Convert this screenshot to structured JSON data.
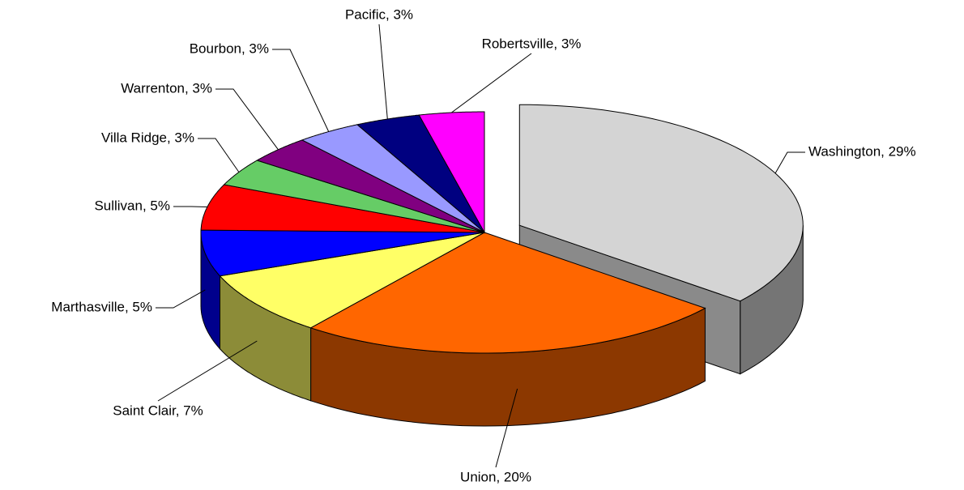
{
  "chart_data": {
    "type": "pie3d",
    "value_labels": [
      "Washington, 29%",
      "Union, 20%",
      "Saint Clair, 7%",
      "Marthasville, 5%",
      "Sullivan, 5%",
      "Villa Ridge, 3%",
      "Warrenton, 3%",
      "Bourbon, 3%",
      "Pacific, 3%",
      "Robertsville, 3%"
    ],
    "values": [
      29,
      20,
      7,
      5,
      5,
      3,
      3,
      3,
      3,
      3
    ],
    "colors": [
      "#d4d4d4",
      "#ff6600",
      "#ffff66",
      "#0000ff",
      "#ff0000",
      "#66cc66",
      "#800080",
      "#9999ff",
      "#000080",
      "#ff00ff"
    ],
    "exploded": [
      0
    ]
  }
}
